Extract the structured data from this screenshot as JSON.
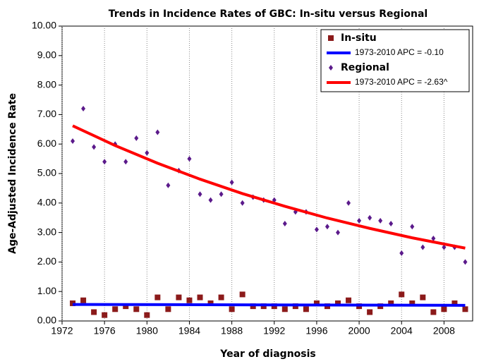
{
  "chart_data": {
    "type": "scatter",
    "title": "Trends in Incidence Rates of GBC: In-situ versus Regional",
    "x_label": "Year of diagnosis",
    "y_label": "Age-Adjusted Incidence Rate",
    "x": [
      1973,
      1974,
      1975,
      1976,
      1977,
      1978,
      1979,
      1980,
      1981,
      1982,
      1983,
      1984,
      1985,
      1986,
      1987,
      1988,
      1989,
      1990,
      1991,
      1992,
      1993,
      1994,
      1995,
      1996,
      1997,
      1998,
      1999,
      2000,
      2001,
      2002,
      2003,
      2004,
      2005,
      2006,
      2007,
      2008,
      2009,
      2010
    ],
    "series": [
      {
        "name": "In-situ",
        "color": "#8b1a1a",
        "style": "square",
        "values": [
          0.6,
          0.7,
          0.3,
          0.2,
          0.4,
          0.5,
          0.4,
          0.2,
          0.8,
          0.4,
          0.8,
          0.7,
          0.8,
          0.6,
          0.8,
          0.4,
          0.9,
          0.5,
          0.5,
          0.5,
          0.4,
          0.5,
          0.4,
          0.6,
          0.5,
          0.6,
          0.7,
          0.5,
          0.3,
          0.5,
          0.6,
          0.9,
          0.6,
          0.8,
          0.3,
          0.4,
          0.6,
          0.4
        ]
      },
      {
        "name": "1973-2010 APC  = -0.10",
        "color": "#0000ff",
        "style": "line",
        "x": [
          1973,
          2010
        ],
        "values": [
          0.56,
          0.53
        ]
      },
      {
        "name": "Regional",
        "color": "#5b1a8b",
        "style": "diamond",
        "values": [
          6.1,
          7.2,
          5.9,
          5.4,
          6.0,
          5.4,
          6.2,
          5.7,
          6.4,
          4.6,
          5.1,
          5.5,
          4.3,
          4.1,
          4.3,
          4.7,
          4.0,
          4.2,
          4.1,
          4.1,
          3.3,
          3.7,
          3.7,
          3.1,
          3.2,
          3.0,
          4.0,
          3.4,
          3.5,
          3.4,
          3.3,
          2.3,
          3.2,
          2.5,
          2.8,
          2.5,
          2.5,
          2.0
        ]
      },
      {
        "name": "1973-2010 APC  = -2.63^",
        "color": "#ff0000",
        "style": "line",
        "x": [
          1973,
          1977,
          1981,
          1985,
          1989,
          1993,
          1997,
          2001,
          2005,
          2010
        ],
        "values": [
          6.62,
          5.95,
          5.35,
          4.81,
          4.32,
          3.89,
          3.49,
          3.14,
          2.82,
          2.47
        ]
      }
    ],
    "xlim": [
      1972,
      2010.7
    ],
    "ylim": [
      0,
      10
    ],
    "xticks": [
      1972,
      1976,
      1980,
      1984,
      1988,
      1992,
      1996,
      2000,
      2004,
      2008
    ],
    "yticks": [
      {
        "value": 0,
        "label": "0.00"
      },
      {
        "value": 1,
        "label": "1.00"
      },
      {
        "value": 2,
        "label": "2.00"
      },
      {
        "value": 3,
        "label": "3.00"
      },
      {
        "value": 4,
        "label": "4.00"
      },
      {
        "value": 5,
        "label": "5.00"
      },
      {
        "value": 6,
        "label": "6.00"
      },
      {
        "value": 7,
        "label": "7.00"
      },
      {
        "value": 8,
        "label": "8.00"
      },
      {
        "value": 9,
        "label": "9.00"
      },
      {
        "value": 10,
        "label": "10.00"
      }
    ],
    "grid": true
  }
}
